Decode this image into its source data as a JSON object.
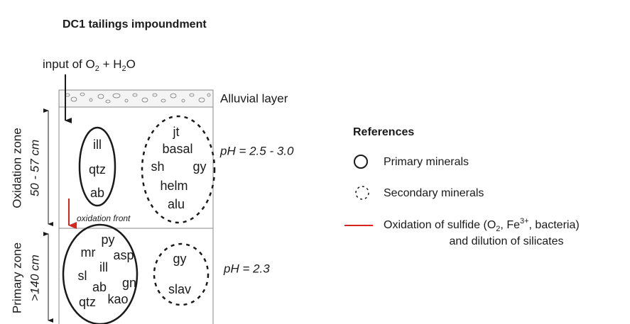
{
  "title": "DC1 tailings impoundment",
  "input_label": [
    "input of O",
    "2",
    " + H",
    "2",
    "O"
  ],
  "layers": {
    "alluvial": "Alluvial layer",
    "oxidation": {
      "zone": "Oxidation zone",
      "depth": "50 - 57 cm",
      "primary": [
        "ill",
        "qtz",
        "ab"
      ],
      "secondary": [
        "jt",
        "basal",
        "sh",
        "gy",
        "helm",
        "alu"
      ],
      "ph": "pH = 2.5 - 3.0",
      "front": "oxidation front"
    },
    "primary": {
      "zone": "Primary zone",
      "depth": ">140 cm",
      "primary": [
        "py",
        "mr",
        "asp",
        "ill",
        "sl",
        "gn",
        "ab",
        "qtz",
        "kao"
      ],
      "secondary": [
        "gy",
        "slav"
      ],
      "ph": "pH = 2.3"
    }
  },
  "references": {
    "title": "References",
    "primary": "Primary minerals",
    "secondary": "Secondary minerals",
    "oxidation": [
      "Oxidation of sulfide (O",
      "2",
      ", Fe",
      "3+",
      ", bacteria)"
    ],
    "oxidation_2": "and dilution of silicates"
  }
}
